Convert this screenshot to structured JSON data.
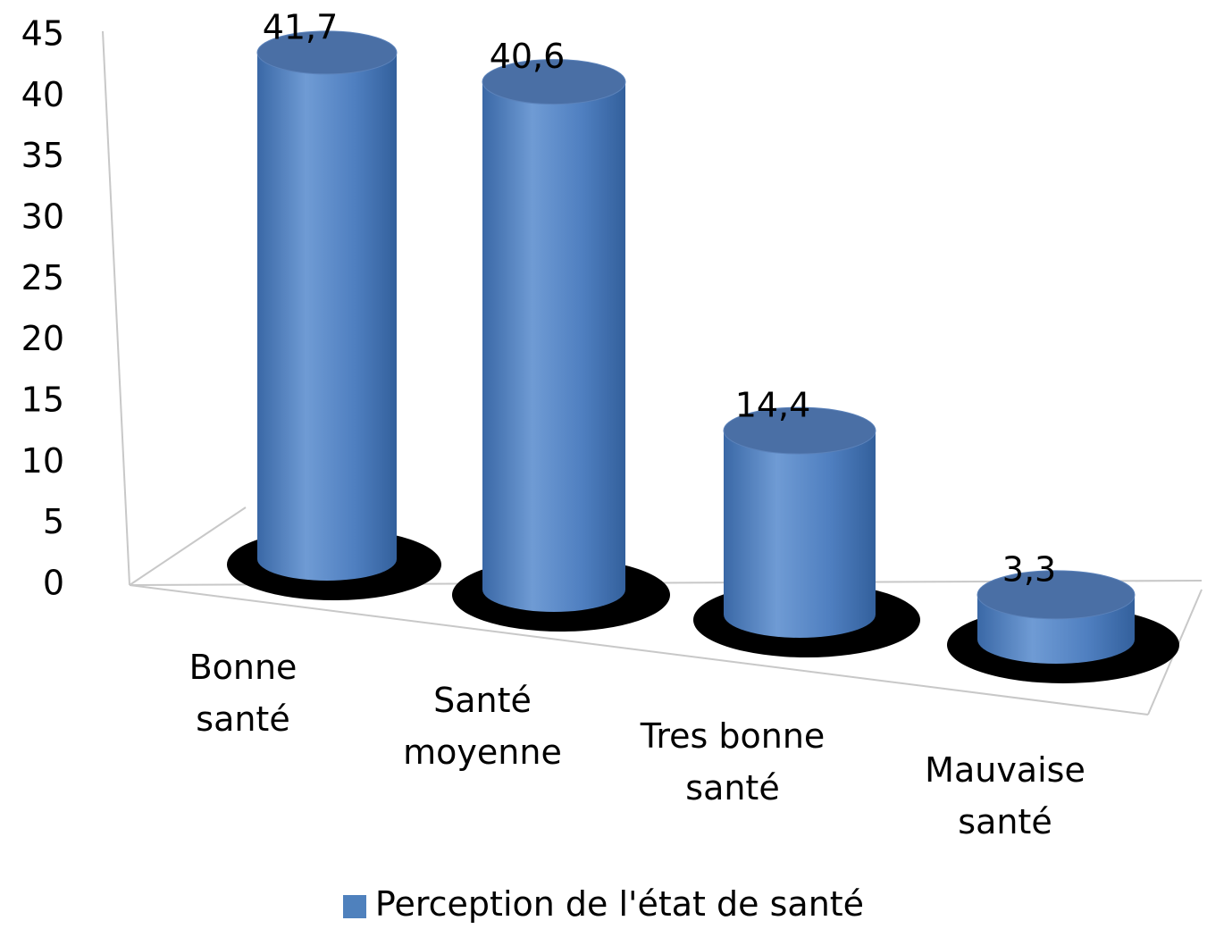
{
  "chart_data": {
    "type": "cylinder-bar",
    "categories": [
      "Bonne santé",
      "Santé moyenne",
      "Tres bonne santé",
      "Mauvaise santé"
    ],
    "series": [
      {
        "name": "Perception de l'état de santé",
        "color": "#4f81bd",
        "values": [
          41.7,
          40.6,
          14.4,
          3.3
        ],
        "value_labels": [
          "41,7",
          "40,6",
          "14,4",
          "3,3"
        ]
      }
    ],
    "ylim": [
      0,
      45
    ],
    "yticks": [
      0,
      5,
      10,
      15,
      20,
      25,
      30,
      35,
      40,
      45
    ],
    "grid": false,
    "legend": "bottom"
  }
}
